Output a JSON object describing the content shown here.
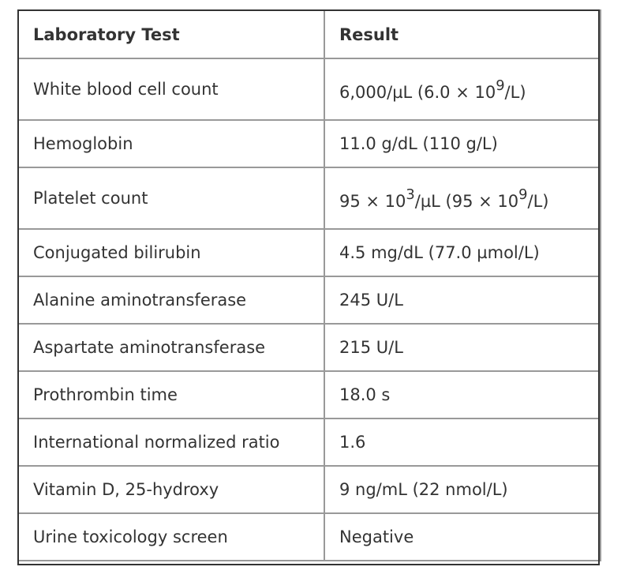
{
  "table": {
    "headers": {
      "test": "Laboratory Test",
      "result": "Result"
    },
    "rows": [
      {
        "test": "White blood cell count",
        "result": [
          {
            "t": "6,000/µL (6.0 × 10"
          },
          {
            "sup": "9"
          },
          {
            "t": "/L)"
          }
        ]
      },
      {
        "test": "Hemoglobin",
        "result": [
          {
            "t": "11.0 g/dL (110 g/L)"
          }
        ]
      },
      {
        "test": "Platelet count",
        "result": [
          {
            "t": "95 × 10"
          },
          {
            "sup": "3"
          },
          {
            "t": "/µL (95 × 10"
          },
          {
            "sup": "9"
          },
          {
            "t": "/L)"
          }
        ]
      },
      {
        "test": "Conjugated bilirubin",
        "result": [
          {
            "t": "4.5 mg/dL (77.0 µmol/L)"
          }
        ]
      },
      {
        "test": "Alanine aminotransferase",
        "result": [
          {
            "t": "245 U/L"
          }
        ]
      },
      {
        "test": "Aspartate aminotransferase",
        "result": [
          {
            "t": "215 U/L"
          }
        ]
      },
      {
        "test": "Prothrombin time",
        "result": [
          {
            "t": "18.0 s"
          }
        ]
      },
      {
        "test": "International normalized ratio",
        "result": [
          {
            "t": "1.6"
          }
        ]
      },
      {
        "test": "Vitamin D, 25-hydroxy",
        "result": [
          {
            "t": "9 ng/mL (22 nmol/L)"
          }
        ]
      },
      {
        "test": "Urine toxicology screen",
        "result": [
          {
            "t": "Negative"
          }
        ]
      }
    ]
  }
}
